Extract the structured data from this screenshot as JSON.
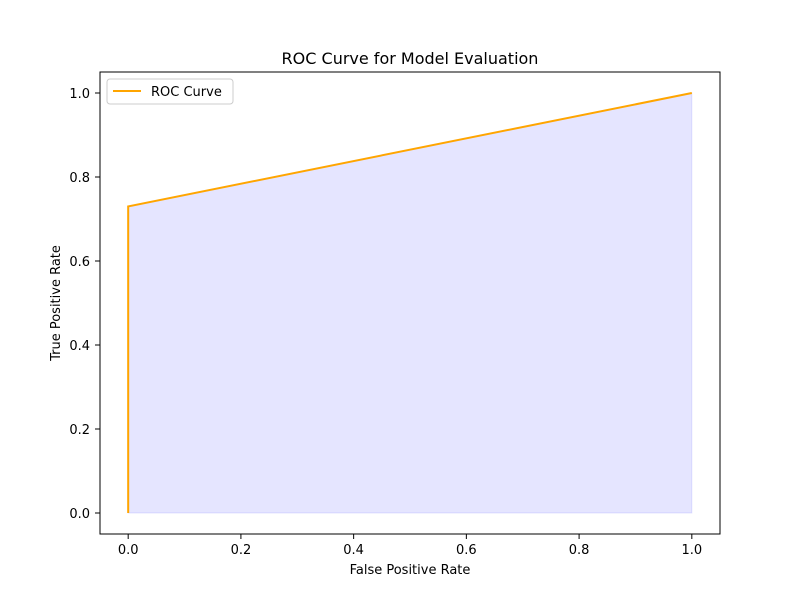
{
  "chart_data": {
    "type": "line",
    "title": "ROC Curve for Model Evaluation",
    "xlabel": "False Positive Rate",
    "ylabel": "True Positive Rate",
    "xlim": [
      -0.05,
      1.05
    ],
    "ylim": [
      -0.05,
      1.05
    ],
    "xticks": [
      0.0,
      0.2,
      0.4,
      0.6,
      0.8,
      1.0
    ],
    "yticks": [
      0.0,
      0.2,
      0.4,
      0.6,
      0.8,
      1.0
    ],
    "xtick_labels": [
      "0.0",
      "0.2",
      "0.4",
      "0.6",
      "0.8",
      "1.0"
    ],
    "ytick_labels": [
      "0.0",
      "0.2",
      "0.4",
      "0.6",
      "0.8",
      "1.0"
    ],
    "grid": false,
    "legend_position": "top-left",
    "series": [
      {
        "name": "ROC Curve",
        "color": "#ffa500",
        "fill_color": "#0000ff",
        "fill_opacity": 0.1,
        "x": [
          0.0,
          0.0,
          1.0
        ],
        "y": [
          0.0,
          0.73,
          1.0
        ]
      }
    ]
  }
}
